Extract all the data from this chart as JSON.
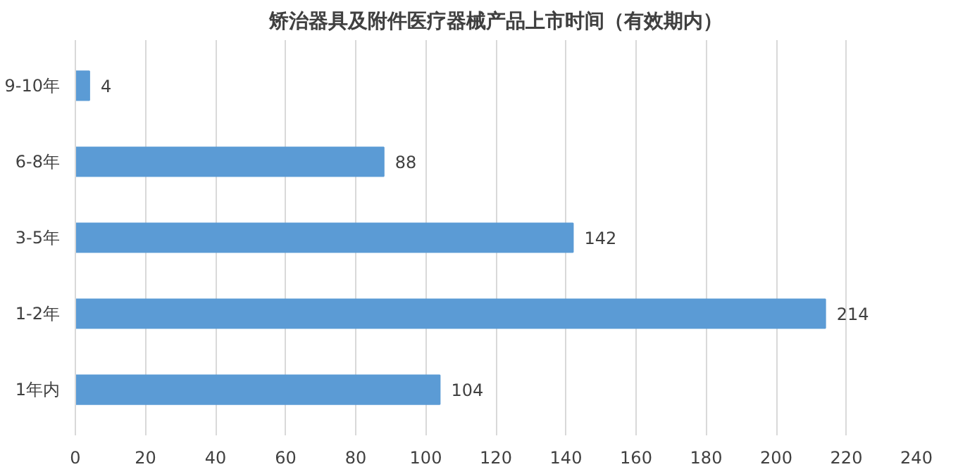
{
  "chart_data": {
    "type": "bar",
    "orientation": "horizontal",
    "title": "矫治器具及附件医疗器械产品上市时间（有效期内）",
    "categories": [
      "9-10年",
      "6-8年",
      "3-5年",
      "1-2年",
      "1年内"
    ],
    "values": [
      4,
      88,
      142,
      214,
      104
    ],
    "color": "#5b9bd5",
    "xlim": [
      0,
      240
    ],
    "xticks": [
      0,
      20,
      40,
      60,
      80,
      100,
      120,
      140,
      160,
      180,
      200,
      220,
      240
    ],
    "grid": "x",
    "data_labels": true
  }
}
